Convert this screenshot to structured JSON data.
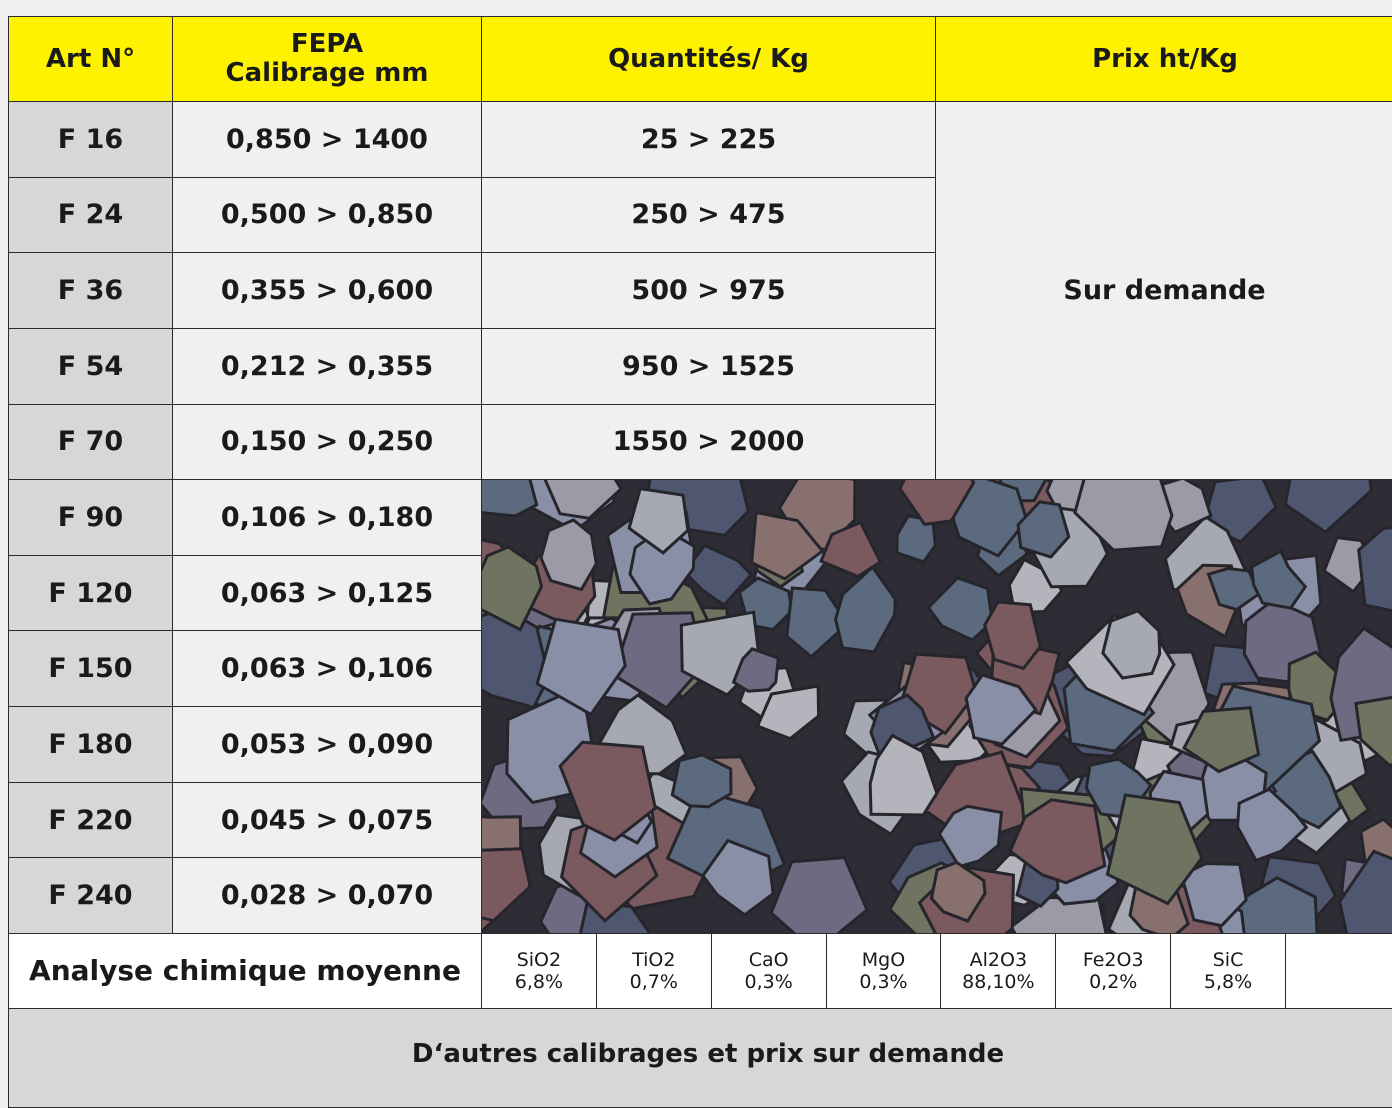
{
  "headers": [
    [
      "Art N°"
    ],
    [
      "FEPA",
      "Calibrage mm"
    ],
    [
      "Quantités/ Kg"
    ],
    [
      "Prix ht/Kg"
    ]
  ],
  "rows": [
    {
      "art": "F 16",
      "calibrage": "0,850 > 1400",
      "quantite": "25 > 225"
    },
    {
      "art": "F 24",
      "calibrage": "0,500 > 0,850",
      "quantite": "250 > 475"
    },
    {
      "art": "F 36",
      "calibrage": "0,355 > 0,600",
      "quantite": "500 > 975"
    },
    {
      "art": "F 54",
      "calibrage": "0,212 > 0,355",
      "quantite": "950 > 1525"
    },
    {
      "art": "F 70",
      "calibrage": "0,150 > 0,250",
      "quantite": "1550 > 2000"
    },
    {
      "art": "F 90",
      "calibrage": "0,106 > 0,180"
    },
    {
      "art": "F 120",
      "calibrage": "0,063 > 0,125"
    },
    {
      "art": "F 150",
      "calibrage": "0,063 > 0,106"
    },
    {
      "art": "F 180",
      "calibrage": "0,053 > 0,090"
    },
    {
      "art": "F 220",
      "calibrage": "0,045 > 0,075"
    },
    {
      "art": "F 240",
      "calibrage": "0,028 > 0,070"
    }
  ],
  "price_note": "Sur demande",
  "analysis": {
    "label": "Analyse chimique moyenne",
    "items": [
      {
        "name": "SiO2",
        "value": "6,8%"
      },
      {
        "name": "TiO2",
        "value": "0,7%"
      },
      {
        "name": "CaO",
        "value": "0,3%"
      },
      {
        "name": "MgO",
        "value": "0,3%"
      },
      {
        "name": "Al2O3",
        "value": "88,10%"
      },
      {
        "name": "Fe2O3",
        "value": "0,2%"
      },
      {
        "name": "SiC",
        "value": "5,8%"
      }
    ]
  },
  "footer": "D‘autres calibrages et prix sur demande"
}
